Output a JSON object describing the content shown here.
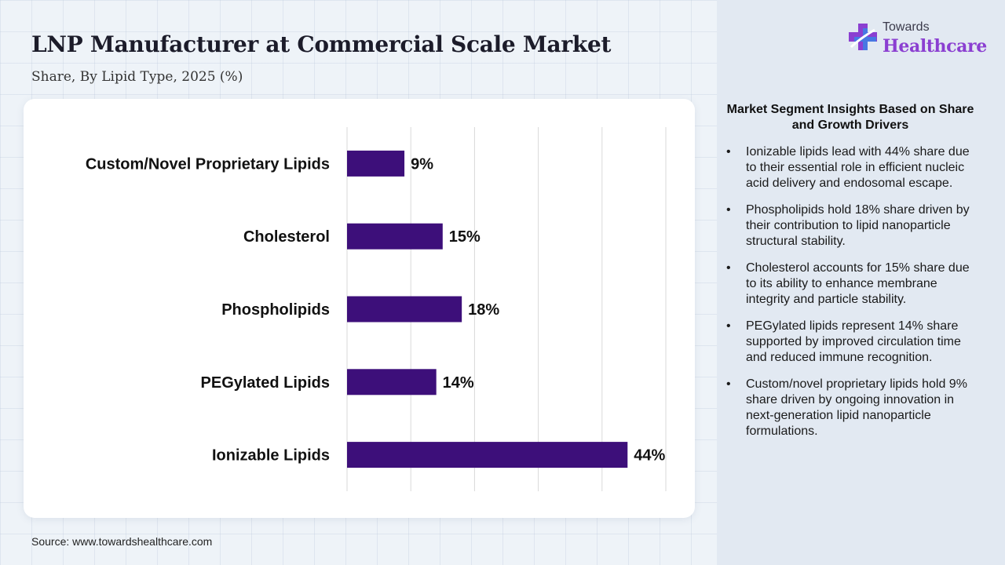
{
  "header": {
    "title": "LNP Manufacturer at Commercial Scale Market",
    "subtitle": "Share, By Lipid Type, 2025 (%)"
  },
  "logo": {
    "top": "Towards",
    "main": "Healthcare",
    "icon": "medical-cross-icon"
  },
  "footer": {
    "source": "Source: www.towardshealthcare.com"
  },
  "colors": {
    "bar": "#3d0f7a",
    "grid": "#d9d9d9",
    "brand": "#8b3fd1"
  },
  "chart_data": {
    "type": "bar",
    "orientation": "horizontal",
    "title": "",
    "xlabel": "",
    "ylabel": "",
    "categories": [
      "Custom/Novel Proprietary Lipids",
      "Cholesterol",
      "Phospholipids",
      "PEGylated Lipids",
      "Ionizable Lipids"
    ],
    "values": [
      9,
      15,
      18,
      14,
      44
    ],
    "value_labels": [
      "9%",
      "15%",
      "18%",
      "14%",
      "44%"
    ],
    "xlim": [
      0,
      50
    ],
    "grid": true
  },
  "insights": {
    "title": "Market Segment Insights Based on Share and Growth Drivers",
    "items": [
      "Ionizable lipids lead with 44% share due to their essential role in efficient nucleic acid delivery and endosomal escape.",
      "Phospholipids hold 18% share driven by their contribution to lipid nanoparticle structural stability.",
      "Cholesterol accounts for 15% share due to its ability to enhance membrane integrity and particle stability.",
      "PEGylated lipids represent 14% share supported by improved circulation time and reduced immune recognition.",
      "Custom/novel proprietary lipids hold 9% share driven by ongoing innovation in next-generation lipid nanoparticle formulations."
    ]
  }
}
